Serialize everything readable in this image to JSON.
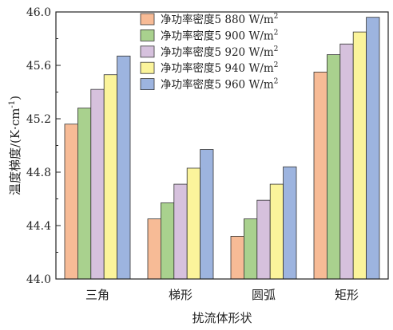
{
  "chart_data": {
    "type": "bar",
    "xlabel": "扰流体形状",
    "ylabel": "温度梯度/(K·cm",
    "ylabel_sup": "-1",
    "ylabel_close": ")",
    "ylim": [
      44.0,
      46.0
    ],
    "yticks": [
      "44.0",
      "44.4",
      "44.8",
      "45.2",
      "45.6",
      "46.0"
    ],
    "ytick_values": [
      44.0,
      44.4,
      44.8,
      45.2,
      45.6,
      46.0
    ],
    "categories": [
      "三角",
      "梯形",
      "圆弧",
      "矩形"
    ],
    "legend_position": "top-right",
    "grid": false,
    "series": [
      {
        "name": "净功率密度5 880 W/m",
        "sup": "2",
        "color": "#f7bb96",
        "values": [
          45.16,
          44.45,
          44.32,
          45.55
        ]
      },
      {
        "name": "净功率密度5 900 W/m",
        "sup": "2",
        "color": "#a9d18e",
        "values": [
          45.28,
          44.57,
          44.45,
          45.68
        ]
      },
      {
        "name": "净功率密度5 920 W/m",
        "sup": "2",
        "color": "#d6c1dd",
        "values": [
          45.42,
          44.71,
          44.59,
          45.76
        ]
      },
      {
        "name": "净功率密度5 940 W/m",
        "sup": "2",
        "color": "#fbf49b",
        "values": [
          45.53,
          44.83,
          44.71,
          45.85
        ]
      },
      {
        "name": "净功率密度5 960 W/m",
        "sup": "2",
        "color": "#9db4df",
        "values": [
          45.67,
          44.97,
          44.84,
          45.96
        ]
      }
    ]
  }
}
